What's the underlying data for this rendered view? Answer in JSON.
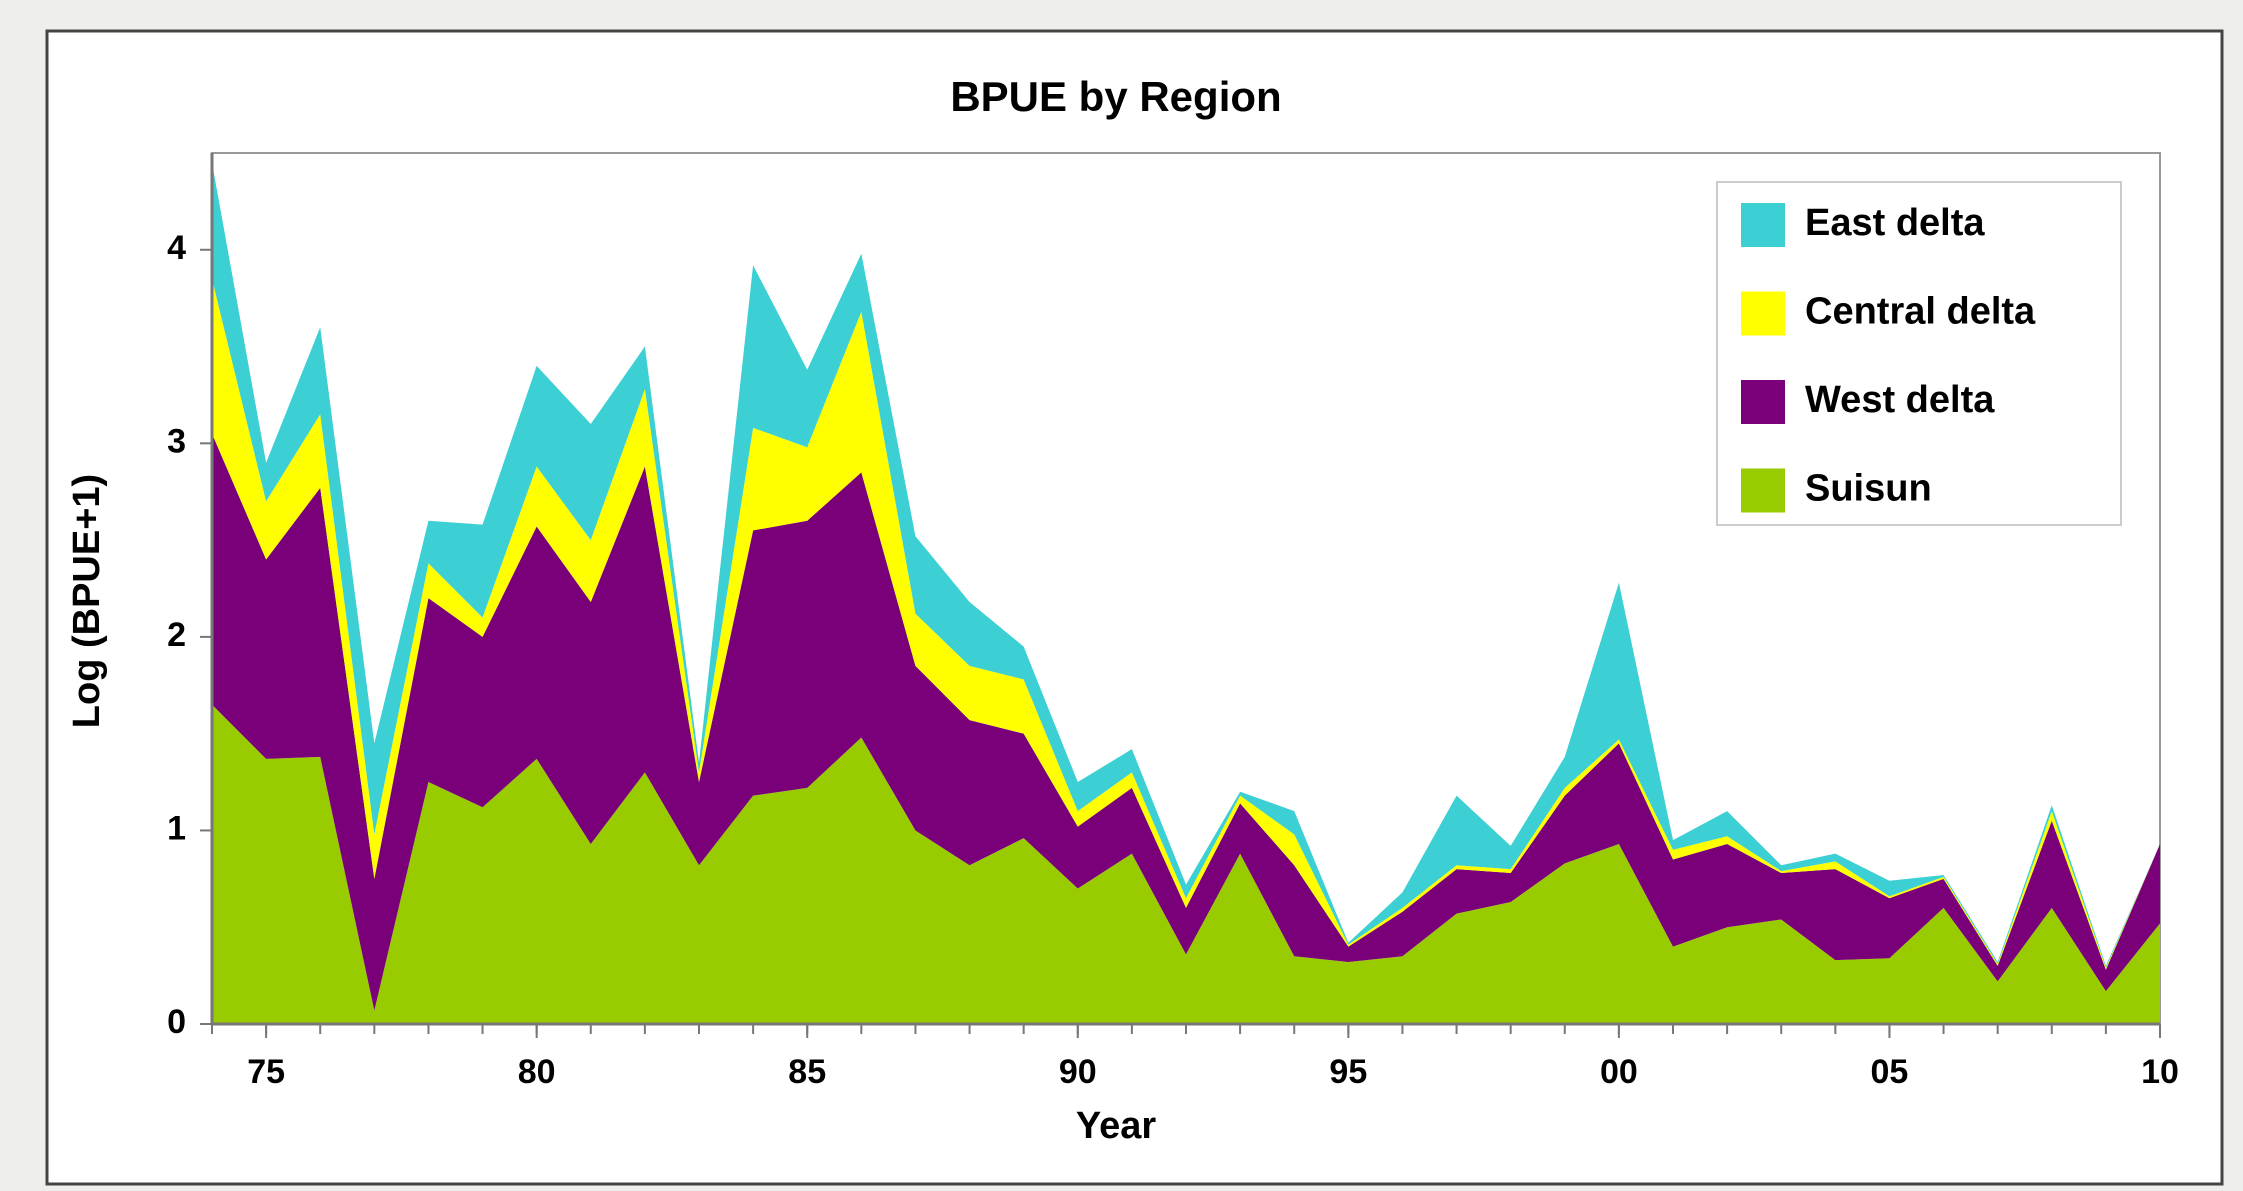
{
  "chart_data": {
    "type": "stacked_area",
    "title": "BPUE by Region",
    "x_label": "Year",
    "y_label": "Log (BPUE+1)",
    "x": [
      1974,
      1975,
      1976,
      1977,
      1978,
      1979,
      1980,
      1981,
      1982,
      1983,
      1984,
      1985,
      1986,
      1987,
      1988,
      1989,
      1990,
      1991,
      1992,
      1993,
      1994,
      1995,
      1996,
      1997,
      1998,
      1999,
      2000,
      2001,
      2002,
      2003,
      2004,
      2005,
      2006,
      2007,
      2008,
      2009,
      2010
    ],
    "series": [
      {
        "name": "East delta",
        "color": "#3ccfd3",
        "values": [
          0.6,
          0.2,
          0.45,
          0.47,
          0.22,
          0.48,
          0.52,
          0.6,
          0.22,
          0.05,
          0.84,
          0.4,
          0.3,
          0.4,
          0.33,
          0.17,
          0.15,
          0.12,
          0.07,
          0.02,
          0.12,
          0.01,
          0.08,
          0.36,
          0.12,
          0.16,
          0.81,
          0.05,
          0.13,
          0.03,
          0.04,
          0.08,
          0.01,
          0.01,
          0.03,
          0.01,
          0
        ]
      },
      {
        "name": "Central delta",
        "color": "#ffff00",
        "values": [
          0.8,
          0.3,
          0.38,
          0.23,
          0.18,
          0.1,
          0.31,
          0.32,
          0.4,
          0.05,
          0.53,
          0.38,
          0.83,
          0.27,
          0.28,
          0.28,
          0.08,
          0.08,
          0.05,
          0.04,
          0.16,
          0.01,
          0.02,
          0.02,
          0.02,
          0.04,
          0.02,
          0.05,
          0.04,
          0.01,
          0.04,
          0.01,
          0.01,
          0.01,
          0.05,
          0.01,
          0
        ]
      },
      {
        "name": "West delta",
        "color": "#7a007a",
        "values": [
          1.4,
          1.03,
          1.39,
          0.68,
          0.95,
          0.88,
          1.2,
          1.25,
          1.58,
          0.43,
          1.37,
          1.38,
          1.37,
          0.85,
          0.75,
          0.54,
          0.32,
          0.34,
          0.24,
          0.26,
          0.47,
          0.08,
          0.23,
          0.23,
          0.15,
          0.35,
          0.52,
          0.45,
          0.43,
          0.24,
          0.47,
          0.31,
          0.15,
          0.08,
          0.45,
          0.11,
          0.41
        ]
      },
      {
        "name": "Suisun",
        "color": "#99cc00",
        "values": [
          1.65,
          1.37,
          1.38,
          0.07,
          1.25,
          1.12,
          1.37,
          0.93,
          1.3,
          0.82,
          1.18,
          1.22,
          1.48,
          1.0,
          0.82,
          0.96,
          0.7,
          0.88,
          0.36,
          0.88,
          0.35,
          0.32,
          0.35,
          0.57,
          0.63,
          0.83,
          0.93,
          0.4,
          0.5,
          0.54,
          0.33,
          0.34,
          0.6,
          0.22,
          0.6,
          0.17,
          0.52
        ]
      }
    ],
    "xlim": [
      1974,
      2010
    ],
    "xticks": [
      {
        "value": 1975,
        "label": "75"
      },
      {
        "value": 1980,
        "label": "80"
      },
      {
        "value": 1985,
        "label": "85"
      },
      {
        "value": 1990,
        "label": "90"
      },
      {
        "value": 1995,
        "label": "95"
      },
      {
        "value": 2000,
        "label": "00"
      },
      {
        "value": 2005,
        "label": "05"
      },
      {
        "value": 2010,
        "label": "10"
      }
    ],
    "ylim": [
      0,
      4.5
    ],
    "yticks": [
      0,
      1,
      2,
      3,
      4
    ],
    "legend": "upper right",
    "grid": false
  }
}
